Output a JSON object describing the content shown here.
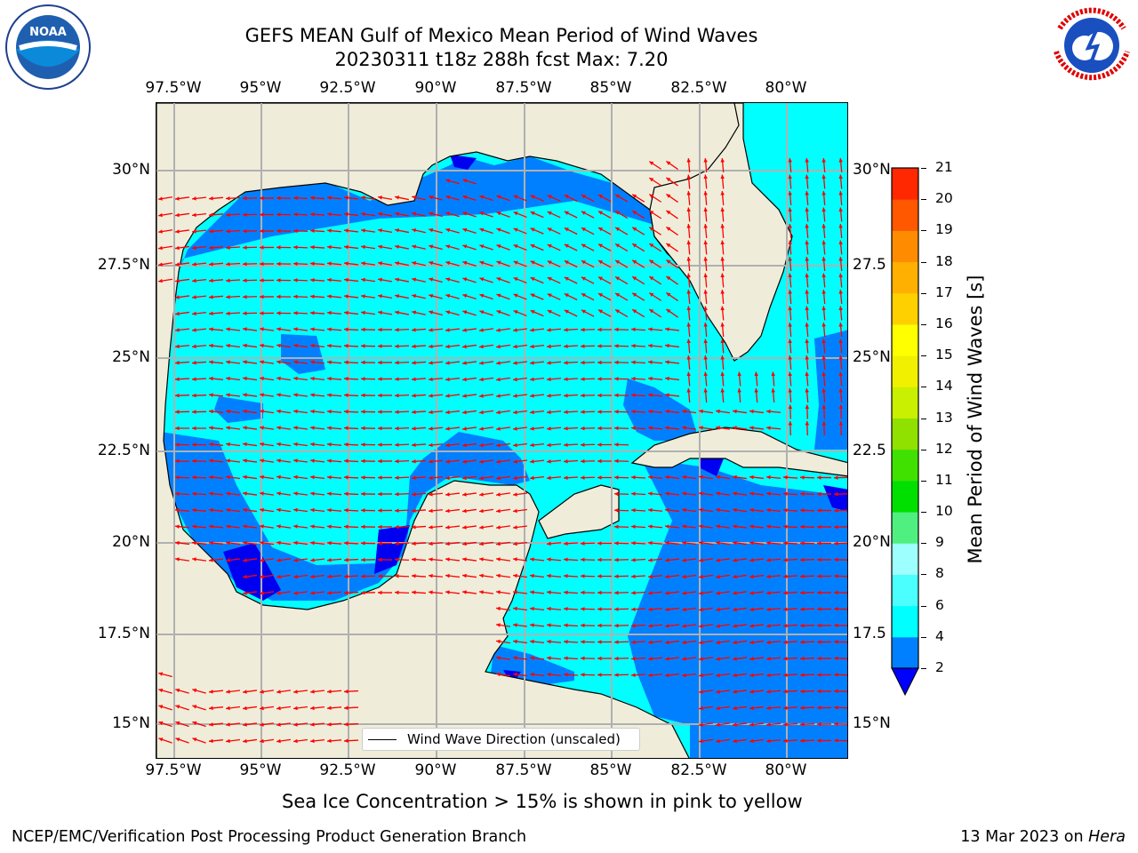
{
  "header": {
    "title_line1": "GEFS MEAN Gulf of Mexico Mean Period of Wind Waves",
    "title_line2": "20230311 t18z 288h fcst   Max: 7.20"
  },
  "logos": {
    "left": {
      "name": "noaa-logo",
      "text": "NOAA",
      "ring_text": "NATIONAL OCEANIC AND ATMOSPHERIC ADMINISTRATION · U.S. DEPARTMENT OF COMMERCE"
    },
    "right": {
      "name": "nws-logo",
      "ring_text": "NATIONAL WEATHER SERVICE"
    }
  },
  "map": {
    "lon_ticks": [
      "97.5°W",
      "95°W",
      "92.5°W",
      "90°W",
      "87.5°W",
      "85°W",
      "82.5°W",
      "80°W"
    ],
    "lat_ticks_left": [
      "30°N",
      "27.5°N",
      "25°N",
      "22.5°N",
      "20°N",
      "17.5°N",
      "15°N"
    ],
    "lat_ticks_right": [
      "30°N",
      "27.5",
      "25°N",
      "22.5",
      "20°N",
      "17.5",
      "15°N"
    ],
    "lon_range": [
      -98,
      -78.5
    ],
    "lat_range": [
      14,
      31.6
    ],
    "legend": {
      "label": "Wind Wave Direction (unscaled)"
    },
    "colors": {
      "land": "#efedda",
      "cyan_4_6": "#00ffff",
      "blue_2_4": "#0080ff",
      "dark_blue_below_2": "#0000f0",
      "arrow": "#ff0000",
      "grid": "#b0b0b0"
    },
    "field": {
      "max_period_s": 7.2,
      "dominant_direction": "westward over central/southern Gulf, northward over eastern Gulf and Florida Straits"
    }
  },
  "colorbar": {
    "label": "Mean Period of Wind Waves [s]",
    "ticks": [
      "2",
      "4",
      "6",
      "8",
      "9",
      "10",
      "11",
      "12",
      "13",
      "14",
      "15",
      "16",
      "17",
      "18",
      "19",
      "20",
      "21"
    ],
    "colors": [
      "#0080ff",
      "#00ffff",
      "#4cffff",
      "#9effff",
      "#50f080",
      "#00e000",
      "#40e000",
      "#90e000",
      "#c8f000",
      "#f0f000",
      "#ffff00",
      "#ffd000",
      "#ffb000",
      "#ff8c00",
      "#ff5800",
      "#ff2800",
      "#ff0000"
    ],
    "extend_color": "#0000ff"
  },
  "footnote": "Sea Ice Concentration > 15% is shown in pink to yellow",
  "footer": {
    "left": "NCEP/EMC/Verification Post Processing Product Generation Branch",
    "right_date": "13 Mar 2023 on",
    "right_host": "Hera"
  }
}
